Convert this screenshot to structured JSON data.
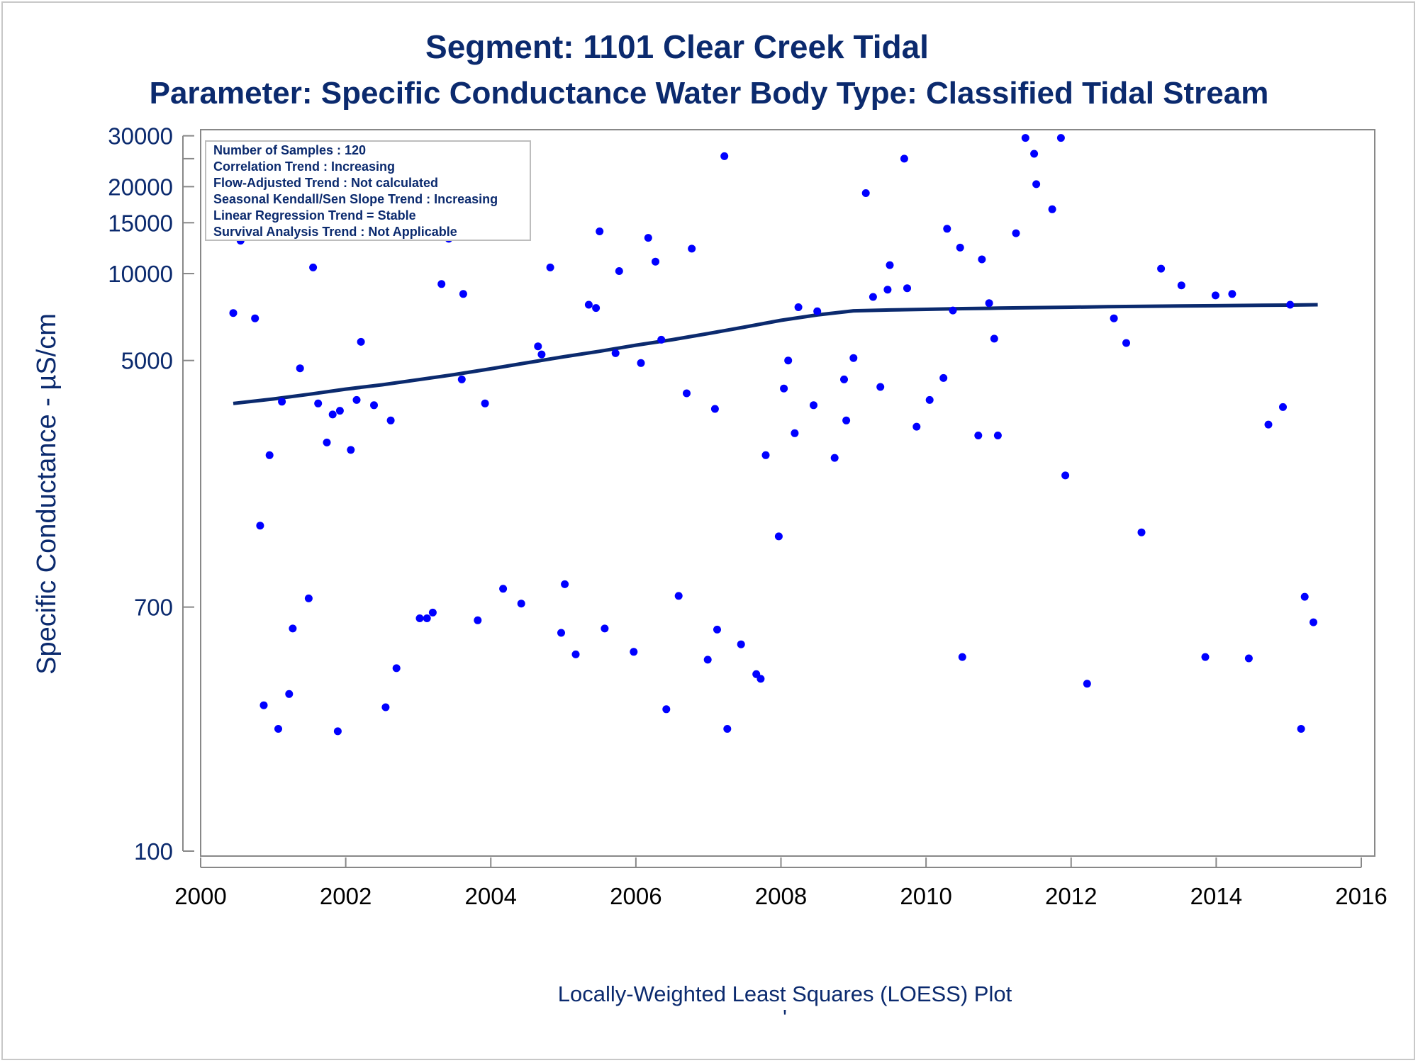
{
  "chart_data": {
    "type": "scatter",
    "title": "Segment: 1101  Clear Creek Tidal",
    "subtitle": "Parameter: Specific Conductance   Water Body Type: Classified Tidal Stream",
    "ylabel": "Specific Conductance -  µS/cm",
    "xlabel": "",
    "footnote": "Locally-Weighted Least Squares (LOESS) Plot",
    "footnote_mark": "'",
    "y_scale": "log",
    "ylim": [
      100,
      31500
    ],
    "xlim": [
      2000,
      2016
    ],
    "y_ticks": [
      30000,
      20000,
      15000,
      10000,
      5000,
      700,
      100
    ],
    "y_minor_ticks": [
      25000
    ],
    "x_ticks": [
      2000,
      2002,
      2004,
      2006,
      2008,
      2010,
      2012,
      2014,
      2016
    ],
    "legend_placement": "top-left",
    "grid": false,
    "colors": {
      "points": "#0000ff",
      "loess": "#0b2a6e",
      "text": "#0b2a6e",
      "axis": "#888888"
    },
    "info_box": [
      "Number of Samples : 120",
      "Correlation Trend : Increasing",
      "Flow-Adjusted Trend : Not calculated",
      "Seasonal Kendall/Sen Slope Trend : Increasing",
      "Linear Regression Trend = Stable",
      "Survival Analysis Trend : Not Applicable"
    ],
    "series": [
      {
        "type": "scatter",
        "x": [
          2000.45,
          2000.55,
          2000.62,
          2000.75,
          2000.82,
          2000.87,
          2000.95,
          2001.07,
          2001.12,
          2001.22,
          2001.27,
          2001.37,
          2001.49,
          2001.55,
          2001.62,
          2001.74,
          2001.82,
          2001.89,
          2001.92,
          2002.07,
          2002.15,
          2002.21,
          2002.39,
          2002.55,
          2002.62,
          2002.7,
          2003.02,
          2003.12,
          2003.2,
          2003.32,
          2003.42,
          2003.6,
          2003.62,
          2003.82,
          2003.92,
          2004.17,
          2004.42,
          2004.65,
          2004.7,
          2004.82,
          2004.97,
          2005.02,
          2005.17,
          2005.35,
          2005.45,
          2005.5,
          2005.57,
          2005.72,
          2005.77,
          2005.97,
          2006.07,
          2006.17,
          2006.27,
          2006.35,
          2006.42,
          2006.59,
          2006.7,
          2006.77,
          2006.99,
          2007.09,
          2007.12,
          2007.22,
          2007.26,
          2007.45,
          2007.66,
          2007.72,
          2007.79,
          2007.97,
          2008.04,
          2008.1,
          2008.19,
          2008.24,
          2008.45,
          2008.5,
          2008.74,
          2008.87,
          2008.9,
          2009.0,
          2009.17,
          2009.27,
          2009.37,
          2009.47,
          2009.5,
          2009.7,
          2009.74,
          2009.87,
          2010.05,
          2010.24,
          2010.29,
          2010.37,
          2010.47,
          2010.5,
          2010.72,
          2010.77,
          2010.87,
          2010.94,
          2010.99,
          2011.24,
          2011.37,
          2011.49,
          2011.52,
          2011.74,
          2011.86,
          2011.92,
          2012.22,
          2012.59,
          2012.76,
          2012.97,
          2013.24,
          2013.52,
          2013.85,
          2013.99,
          2014.22,
          2014.45,
          2014.72,
          2014.92,
          2015.02,
          2015.17,
          2015.22,
          2015.34
        ],
        "y": [
          7300,
          13000,
          18500,
          7000,
          1340,
          320,
          2350,
          265,
          3600,
          350,
          590,
          4700,
          750,
          10500,
          3550,
          2600,
          3250,
          260,
          3350,
          2450,
          3650,
          5800,
          3500,
          315,
          3100,
          430,
          640,
          640,
          670,
          9200,
          13200,
          4300,
          8500,
          630,
          3550,
          810,
          720,
          5600,
          5250,
          10500,
          570,
          840,
          480,
          7800,
          7600,
          14000,
          590,
          5300,
          10200,
          490,
          4900,
          13300,
          11000,
          5900,
          310,
          765,
          3850,
          12200,
          460,
          3400,
          585,
          25500,
          265,
          520,
          410,
          395,
          2350,
          1230,
          4000,
          5000,
          2800,
          7650,
          3500,
          7400,
          2300,
          4300,
          3100,
          5100,
          19000,
          8300,
          4050,
          8800,
          10700,
          25000,
          8900,
          2950,
          3650,
          4350,
          14300,
          7450,
          12300,
          470,
          2750,
          11200,
          7900,
          5950,
          2750,
          13800,
          29500,
          26000,
          20400,
          16700,
          29500,
          2000,
          380,
          7000,
          5750,
          1270,
          10400,
          9100,
          470,
          8400,
          8500,
          465,
          3000,
          3450,
          7800,
          265,
          760,
          620
        ],
        "color": "#0000ff"
      },
      {
        "type": "line",
        "name": "",
        "x": [
          2000.45,
          2001.0,
          2001.5,
          2002.0,
          2002.5,
          2003.0,
          2003.5,
          2004.0,
          2004.5,
          2005.0,
          2005.5,
          2006.0,
          2006.5,
          2007.0,
          2007.5,
          2008.0,
          2008.5,
          2009.0,
          2009.5,
          2010.0,
          2010.5,
          2011.0,
          2011.5,
          2012.0,
          2012.5,
          2013.0,
          2013.5,
          2014.0,
          2014.5,
          2015.0,
          2015.4
        ],
        "y": [
          3550,
          3680,
          3820,
          3980,
          4120,
          4290,
          4470,
          4680,
          4910,
          5150,
          5380,
          5650,
          5900,
          6200,
          6530,
          6890,
          7190,
          7430,
          7480,
          7520,
          7560,
          7590,
          7620,
          7650,
          7680,
          7700,
          7720,
          7740,
          7760,
          7780,
          7800
        ],
        "color": "#0b2a6e"
      }
    ]
  }
}
